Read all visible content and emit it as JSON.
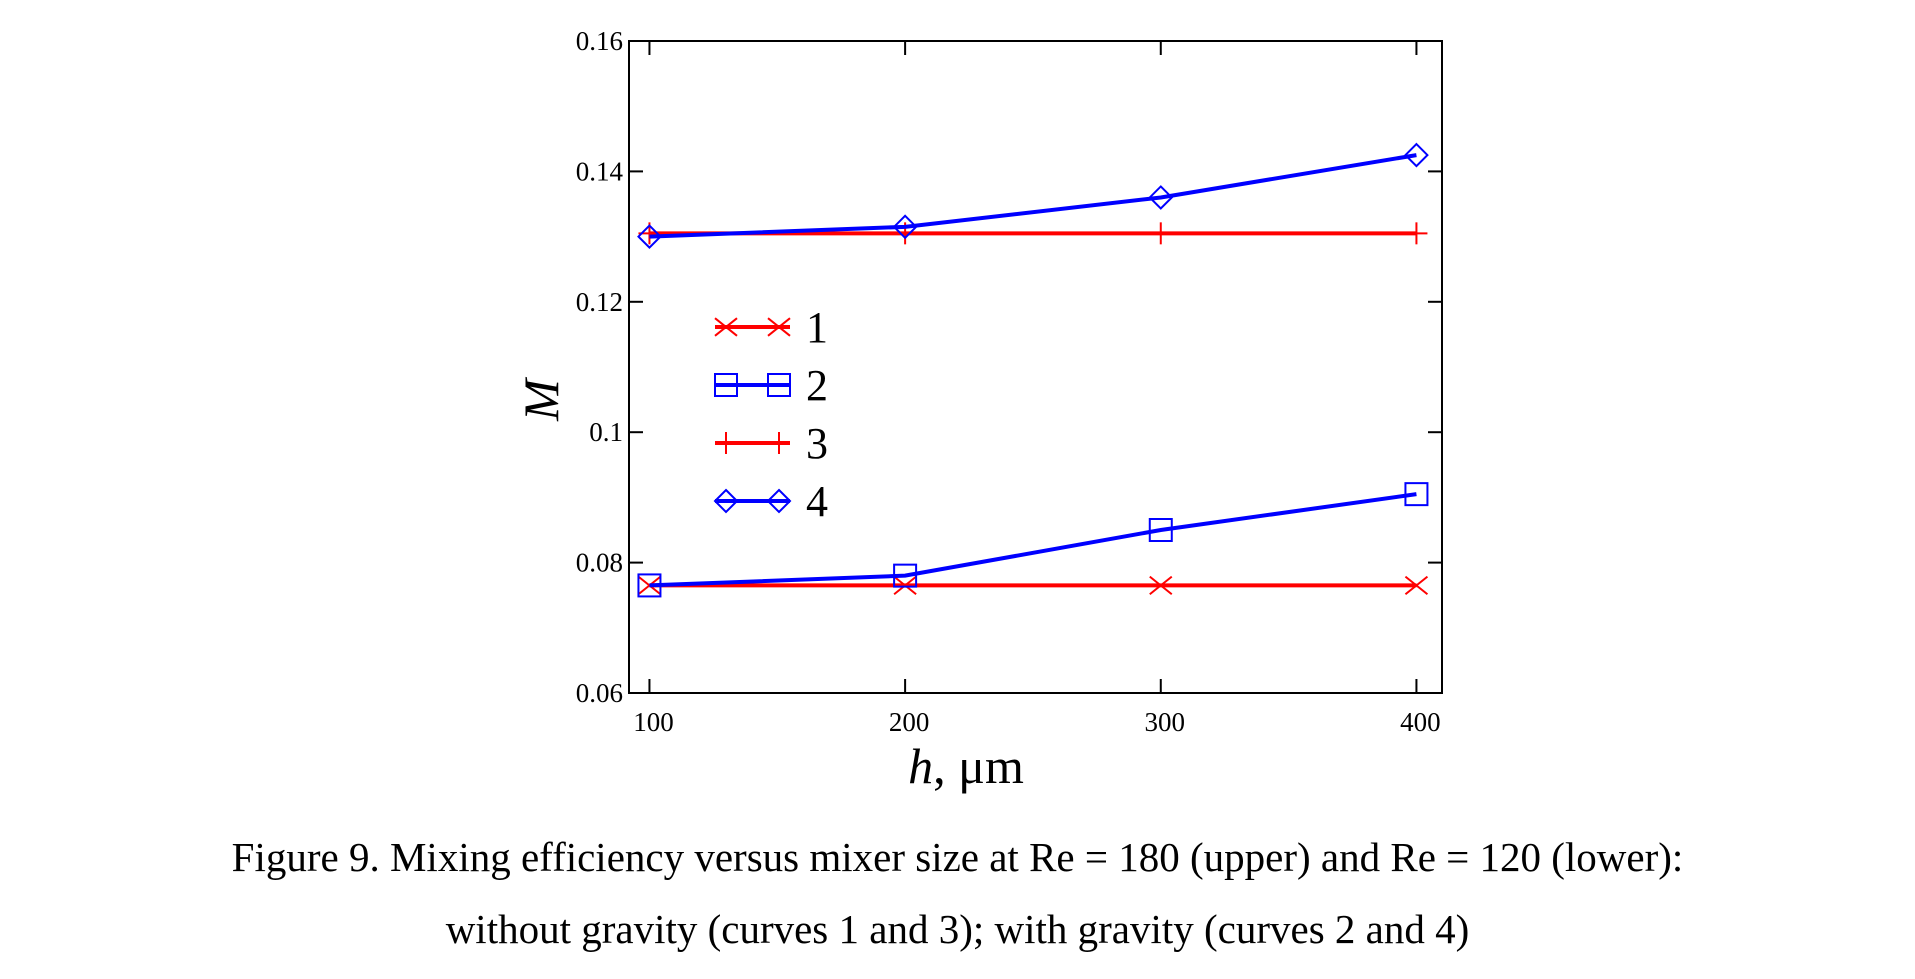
{
  "chart_data": {
    "type": "line",
    "x": [
      100,
      200,
      300,
      400
    ],
    "xlabel": "h, μm",
    "xlabel_var": "h",
    "xlabel_unit": ", μm",
    "ylabel": "M",
    "xlim": [
      92,
      410
    ],
    "ylim": [
      0.06,
      0.16
    ],
    "xticks": [
      100,
      200,
      300,
      400
    ],
    "xtick_labels": [
      "100",
      "200",
      "300",
      "400"
    ],
    "yticks": [
      0.06,
      0.08,
      0.1,
      0.12,
      0.14,
      0.16
    ],
    "ytick_labels": [
      "0.06",
      "0.08",
      "0.1",
      "0.12",
      "0.14",
      "0.16"
    ],
    "grid": false,
    "legend_position": "left-center",
    "series": [
      {
        "name": "1",
        "values": [
          0.0765,
          0.0765,
          0.0765,
          0.0765
        ],
        "color": "#ff0000",
        "marker": "x"
      },
      {
        "name": "2",
        "values": [
          0.0765,
          0.078,
          0.085,
          0.0905
        ],
        "color": "#0000ff",
        "marker": "square"
      },
      {
        "name": "3",
        "values": [
          0.1305,
          0.1305,
          0.1305,
          0.1305
        ],
        "color": "#ff0000",
        "marker": "plus"
      },
      {
        "name": "4",
        "values": [
          0.13,
          0.1315,
          0.136,
          0.1425
        ],
        "color": "#0000ff",
        "marker": "diamond"
      }
    ]
  },
  "caption": {
    "line1": "Figure 9. Mixing efficiency versus mixer size at Re = 180 (upper) and Re = 120 (lower):",
    "line2": "without gravity (curves 1 and 3); with gravity (curves 2 and 4)"
  }
}
